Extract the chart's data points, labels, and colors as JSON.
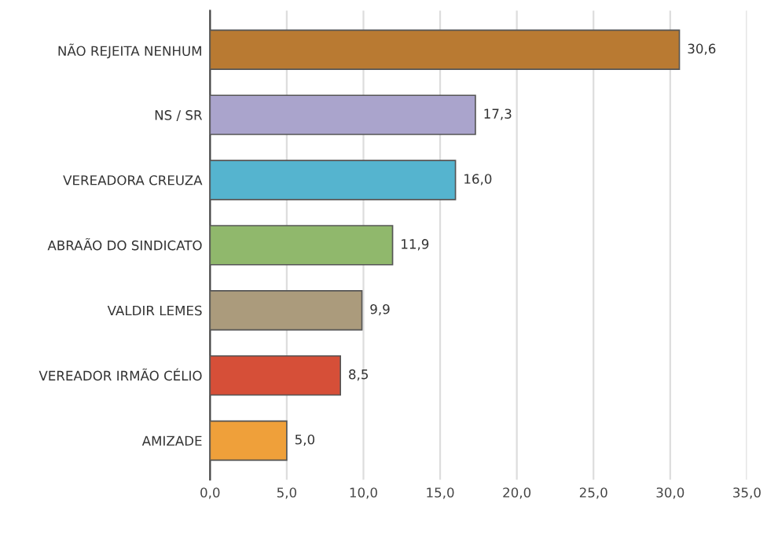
{
  "chart_data": {
    "type": "bar",
    "orientation": "horizontal",
    "categories": [
      "NÃO REJEITA NENHUM",
      "NS / SR",
      "VEREADORA CREUZA",
      "ABRAÃO DO SINDICATO",
      "VALDIR LEMES",
      "VEREADOR IRMÃO CÉLIO",
      "AMIZADE"
    ],
    "values": [
      30.6,
      17.3,
      16.0,
      11.9,
      9.9,
      8.5,
      5.0
    ],
    "value_labels": [
      "30,6",
      "17,3",
      "16,0",
      "11,9",
      "9,9",
      "8,5",
      "5,0"
    ],
    "colors": [
      "#b97a32",
      "#aaa4cc",
      "#55b4cf",
      "#90b86c",
      "#ab9b7c",
      "#d64f38",
      "#efa03a"
    ],
    "xlim": [
      0,
      35
    ],
    "xticks": [
      {
        "value": 0,
        "label": "0,0"
      },
      {
        "value": 5,
        "label": "5,0"
      },
      {
        "value": 10,
        "label": "10,0"
      },
      {
        "value": 15,
        "label": "15,0"
      },
      {
        "value": 20,
        "label": "20,0"
      },
      {
        "value": 25,
        "label": "25,0"
      },
      {
        "value": 30,
        "label": "30,0"
      },
      {
        "value": 35,
        "label": "35,0"
      }
    ],
    "grid": "x",
    "legend": false
  }
}
